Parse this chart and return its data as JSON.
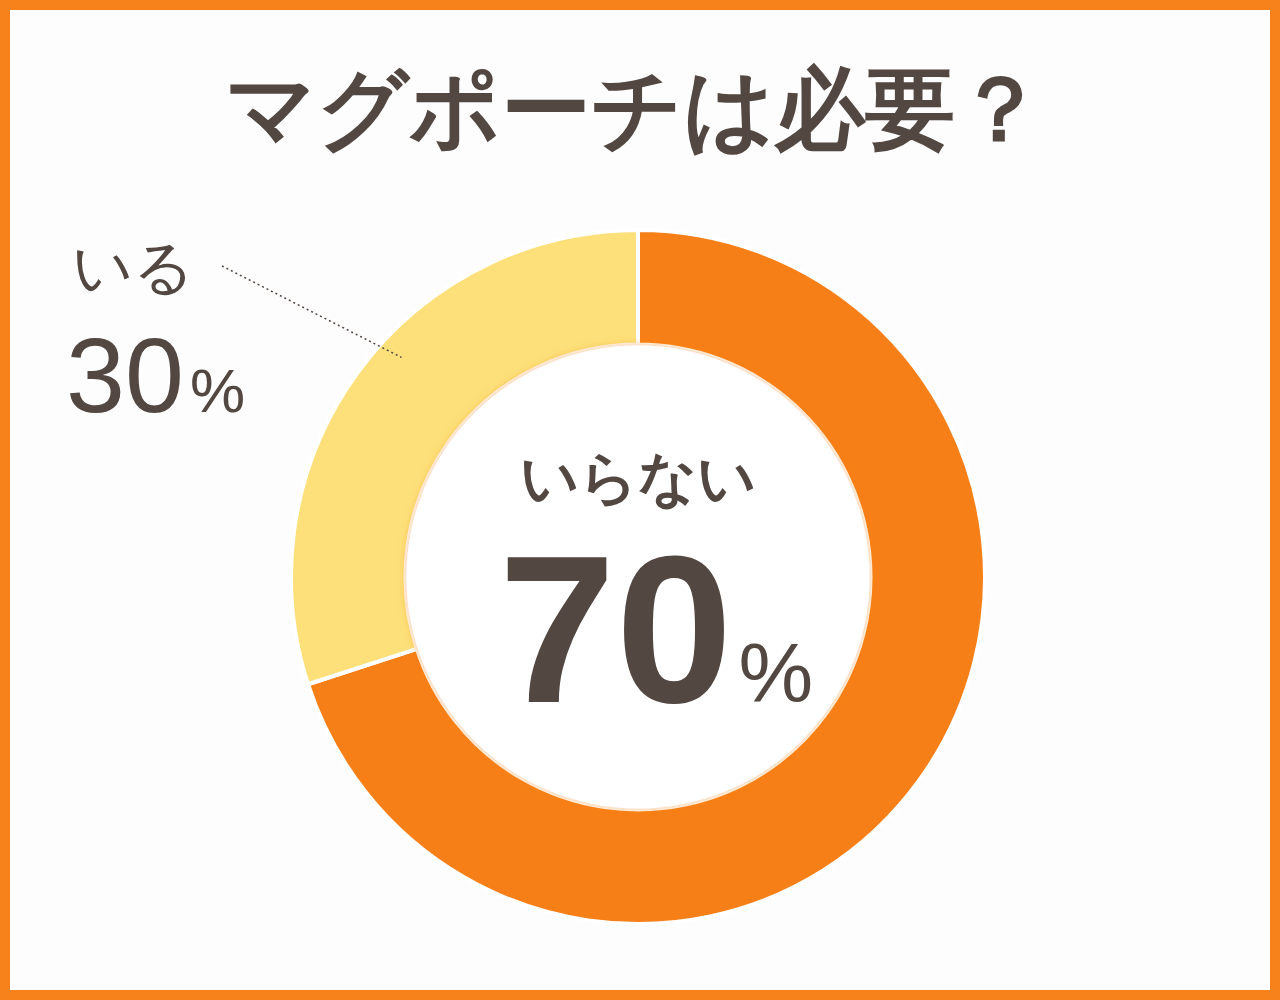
{
  "chart_data": {
    "type": "donut",
    "title": "マグポーチは必要？",
    "categories": [
      "いらない",
      "いる"
    ],
    "values": [
      70,
      30
    ],
    "colors": [
      "#f77f17",
      "#fde07a"
    ],
    "value_labels": [
      "70%",
      "30%"
    ]
  }
}
